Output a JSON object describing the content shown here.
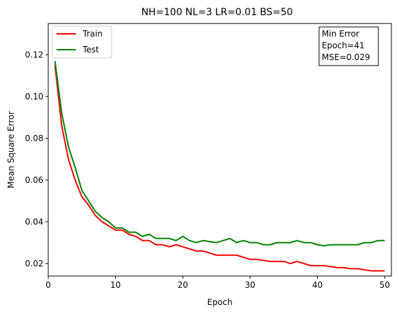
{
  "chart_data": {
    "type": "line",
    "title": "NH=100 NL=3 LR=0.01 BS=50",
    "xlabel": "Epoch",
    "ylabel": "Mean Square Error",
    "xlim": [
      0,
      51
    ],
    "ylim": [
      0.014,
      0.135
    ],
    "xticks": [
      0,
      10,
      20,
      30,
      40,
      50
    ],
    "yticks": [
      0.02,
      0.04,
      0.06,
      0.08,
      0.1,
      0.12
    ],
    "ytick_labels": [
      "0.02",
      "0.04",
      "0.06",
      "0.08",
      "0.10",
      "0.12"
    ],
    "grid": false,
    "legend": {
      "position": "top-left"
    },
    "annotation": {
      "lines": [
        "Min Error",
        "Epoch=41",
        "MSE=0.029"
      ],
      "position": "top-right"
    },
    "x": [
      1,
      2,
      3,
      4,
      5,
      6,
      7,
      8,
      9,
      10,
      11,
      12,
      13,
      14,
      15,
      16,
      17,
      18,
      19,
      20,
      21,
      22,
      23,
      24,
      25,
      26,
      27,
      28,
      29,
      30,
      31,
      32,
      33,
      34,
      35,
      36,
      37,
      38,
      39,
      40,
      41,
      42,
      43,
      44,
      45,
      46,
      47,
      48,
      49,
      50
    ],
    "series": [
      {
        "name": "Train",
        "color": "#ff0000",
        "values": [
          0.115,
          0.086,
          0.07,
          0.06,
          0.052,
          0.048,
          0.043,
          0.04,
          0.038,
          0.036,
          0.036,
          0.034,
          0.033,
          0.031,
          0.031,
          0.029,
          0.029,
          0.028,
          0.029,
          0.028,
          0.027,
          0.026,
          0.026,
          0.025,
          0.024,
          0.024,
          0.024,
          0.024,
          0.023,
          0.022,
          0.022,
          0.0215,
          0.021,
          0.021,
          0.021,
          0.02,
          0.021,
          0.02,
          0.019,
          0.019,
          0.019,
          0.0185,
          0.018,
          0.018,
          0.0175,
          0.0175,
          0.017,
          0.0165,
          0.0165,
          0.0165
        ]
      },
      {
        "name": "Test",
        "color": "#008000",
        "values": [
          0.117,
          0.092,
          0.076,
          0.066,
          0.055,
          0.05,
          0.045,
          0.042,
          0.04,
          0.037,
          0.037,
          0.035,
          0.035,
          0.033,
          0.034,
          0.032,
          0.032,
          0.032,
          0.031,
          0.033,
          0.031,
          0.03,
          0.031,
          0.0305,
          0.03,
          0.031,
          0.032,
          0.03,
          0.031,
          0.03,
          0.03,
          0.029,
          0.029,
          0.03,
          0.03,
          0.03,
          0.031,
          0.03,
          0.03,
          0.029,
          0.0285,
          0.029,
          0.029,
          0.029,
          0.029,
          0.029,
          0.03,
          0.03,
          0.031,
          0.031
        ]
      }
    ]
  }
}
